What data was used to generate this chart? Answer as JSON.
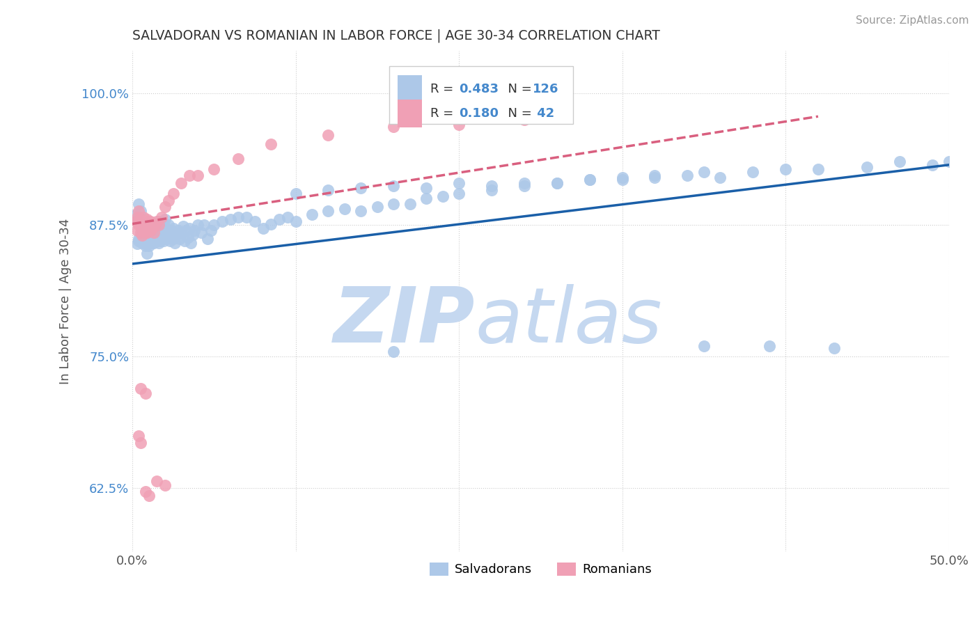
{
  "title": "SALVADORAN VS ROMANIAN IN LABOR FORCE | AGE 30-34 CORRELATION CHART",
  "source": "Source: ZipAtlas.com",
  "ylabel": "In Labor Force | Age 30-34",
  "xlim": [
    0.0,
    0.5
  ],
  "ylim": [
    0.565,
    1.04
  ],
  "yticks": [
    0.625,
    0.75,
    0.875,
    1.0
  ],
  "ytick_labels": [
    "62.5%",
    "75.0%",
    "87.5%",
    "100.0%"
  ],
  "xticks": [
    0.0,
    0.1,
    0.2,
    0.3,
    0.4,
    0.5
  ],
  "xtick_labels": [
    "0.0%",
    "",
    "",
    "",
    "",
    "50.0%"
  ],
  "salvadoran_color": "#adc8e8",
  "romanian_color": "#f0a0b5",
  "trendline_blue_color": "#1a5fa8",
  "trendline_pink_color": "#d95f7f",
  "watermark_zip": "ZIP",
  "watermark_atlas": "atlas",
  "watermark_color": "#c5d8f0",
  "blue_trend_x": [
    0.0,
    0.5
  ],
  "blue_trend_y": [
    0.838,
    0.932
  ],
  "pink_trend_x": [
    0.0,
    0.42
  ],
  "pink_trend_y": [
    0.876,
    0.978
  ],
  "salvadoran_points_x": [
    0.002,
    0.003,
    0.004,
    0.004,
    0.005,
    0.006,
    0.007,
    0.008,
    0.009,
    0.01,
    0.011,
    0.012,
    0.013,
    0.014,
    0.015,
    0.016,
    0.017,
    0.018,
    0.019,
    0.02,
    0.003,
    0.004,
    0.005,
    0.005,
    0.006,
    0.006,
    0.007,
    0.007,
    0.008,
    0.008,
    0.009,
    0.009,
    0.01,
    0.01,
    0.011,
    0.011,
    0.012,
    0.012,
    0.013,
    0.014,
    0.015,
    0.015,
    0.016,
    0.016,
    0.017,
    0.018,
    0.019,
    0.019,
    0.02,
    0.02,
    0.021,
    0.022,
    0.022,
    0.023,
    0.024,
    0.025,
    0.025,
    0.026,
    0.027,
    0.028,
    0.029,
    0.03,
    0.031,
    0.032,
    0.033,
    0.034,
    0.035,
    0.036,
    0.037,
    0.038,
    0.04,
    0.042,
    0.044,
    0.046,
    0.048,
    0.05,
    0.055,
    0.06,
    0.065,
    0.07,
    0.075,
    0.08,
    0.085,
    0.09,
    0.095,
    0.1,
    0.11,
    0.12,
    0.13,
    0.14,
    0.15,
    0.16,
    0.17,
    0.18,
    0.19,
    0.2,
    0.22,
    0.24,
    0.26,
    0.28,
    0.3,
    0.32,
    0.35,
    0.38,
    0.4,
    0.42,
    0.45,
    0.47,
    0.49,
    0.5,
    0.1,
    0.12,
    0.14,
    0.16,
    0.18,
    0.2,
    0.22,
    0.24,
    0.26,
    0.28,
    0.3,
    0.32,
    0.34,
    0.36,
    0.39,
    0.43,
    0.16,
    0.35
  ],
  "salvadoran_points_y": [
    0.885,
    0.88,
    0.862,
    0.895,
    0.888,
    0.875,
    0.868,
    0.858,
    0.848,
    0.855,
    0.862,
    0.858,
    0.87,
    0.866,
    0.872,
    0.878,
    0.86,
    0.868,
    0.875,
    0.88,
    0.857,
    0.86,
    0.862,
    0.875,
    0.858,
    0.87,
    0.862,
    0.875,
    0.855,
    0.868,
    0.87,
    0.862,
    0.868,
    0.875,
    0.86,
    0.87,
    0.862,
    0.872,
    0.858,
    0.866,
    0.87,
    0.862,
    0.872,
    0.858,
    0.866,
    0.872,
    0.86,
    0.875,
    0.865,
    0.87,
    0.862,
    0.868,
    0.875,
    0.86,
    0.87,
    0.862,
    0.872,
    0.858,
    0.866,
    0.87,
    0.862,
    0.868,
    0.874,
    0.86,
    0.87,
    0.863,
    0.872,
    0.858,
    0.866,
    0.87,
    0.875,
    0.868,
    0.875,
    0.862,
    0.87,
    0.875,
    0.878,
    0.88,
    0.882,
    0.882,
    0.878,
    0.872,
    0.876,
    0.88,
    0.882,
    0.878,
    0.885,
    0.888,
    0.89,
    0.888,
    0.892,
    0.895,
    0.895,
    0.9,
    0.902,
    0.905,
    0.908,
    0.912,
    0.915,
    0.918,
    0.92,
    0.922,
    0.925,
    0.925,
    0.928,
    0.928,
    0.93,
    0.935,
    0.932,
    0.935,
    0.905,
    0.908,
    0.91,
    0.912,
    0.91,
    0.915,
    0.912,
    0.915,
    0.915,
    0.918,
    0.918,
    0.92,
    0.922,
    0.92,
    0.76,
    0.758,
    0.755,
    0.76
  ],
  "romanian_points_x": [
    0.002,
    0.003,
    0.003,
    0.004,
    0.004,
    0.005,
    0.005,
    0.006,
    0.006,
    0.007,
    0.007,
    0.008,
    0.008,
    0.009,
    0.009,
    0.01,
    0.01,
    0.011,
    0.011,
    0.012,
    0.013,
    0.014,
    0.015,
    0.016,
    0.018,
    0.02,
    0.022,
    0.025,
    0.03,
    0.035,
    0.04,
    0.05,
    0.065,
    0.085,
    0.12,
    0.16,
    0.2,
    0.24,
    0.005,
    0.008,
    0.004,
    0.005,
    0.015,
    0.02,
    0.008,
    0.01
  ],
  "romanian_points_y": [
    0.878,
    0.87,
    0.882,
    0.875,
    0.888,
    0.868,
    0.88,
    0.872,
    0.865,
    0.875,
    0.882,
    0.868,
    0.875,
    0.88,
    0.868,
    0.873,
    0.878,
    0.87,
    0.878,
    0.872,
    0.868,
    0.875,
    0.878,
    0.875,
    0.882,
    0.892,
    0.898,
    0.905,
    0.915,
    0.922,
    0.922,
    0.928,
    0.938,
    0.952,
    0.96,
    0.968,
    0.97,
    0.975,
    0.72,
    0.715,
    0.675,
    0.668,
    0.632,
    0.628,
    0.622,
    0.618
  ]
}
